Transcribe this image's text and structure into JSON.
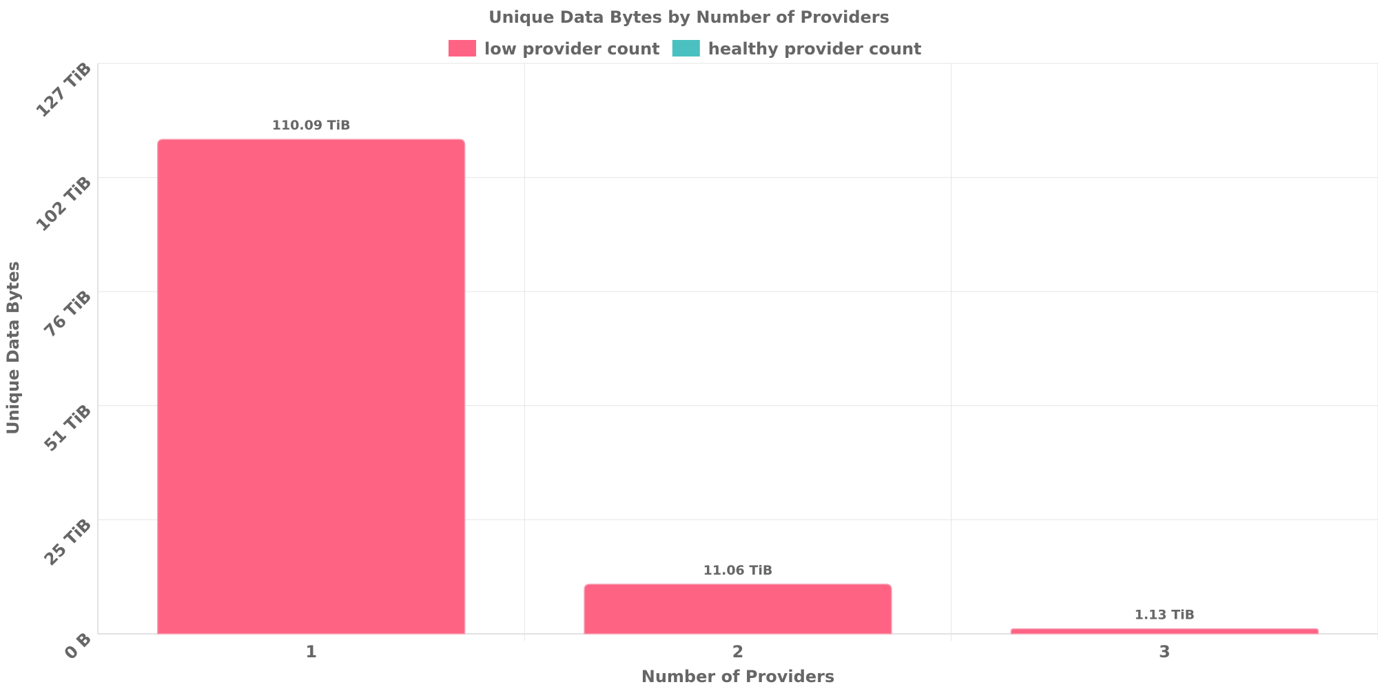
{
  "chart_data": {
    "type": "bar",
    "title": "Unique Data Bytes by Number of Providers",
    "xlabel": "Number of Providers",
    "ylabel": "Unique Data Bytes",
    "categories": [
      "1",
      "2",
      "3"
    ],
    "series": [
      {
        "name": "low provider count",
        "color": "#ff6384",
        "values": [
          110.09,
          11.06,
          1.13
        ],
        "labels": [
          "110.09 TiB",
          "11.06 TiB",
          "1.13 TiB"
        ]
      },
      {
        "name": "healthy provider count",
        "color": "#4bc0c0",
        "values": [
          0,
          0,
          0
        ],
        "labels": []
      }
    ],
    "unit": "TiB",
    "ylim": [
      0,
      127
    ],
    "yticks": [
      {
        "value": 0,
        "label": "0 B"
      },
      {
        "value": 25.4,
        "label": "25 TiB"
      },
      {
        "value": 50.8,
        "label": "51 TiB"
      },
      {
        "value": 76.2,
        "label": "76 TiB"
      },
      {
        "value": 101.6,
        "label": "102 TiB"
      },
      {
        "value": 127,
        "label": "127 TiB"
      }
    ],
    "grid": true,
    "legend_position": "top-center"
  }
}
